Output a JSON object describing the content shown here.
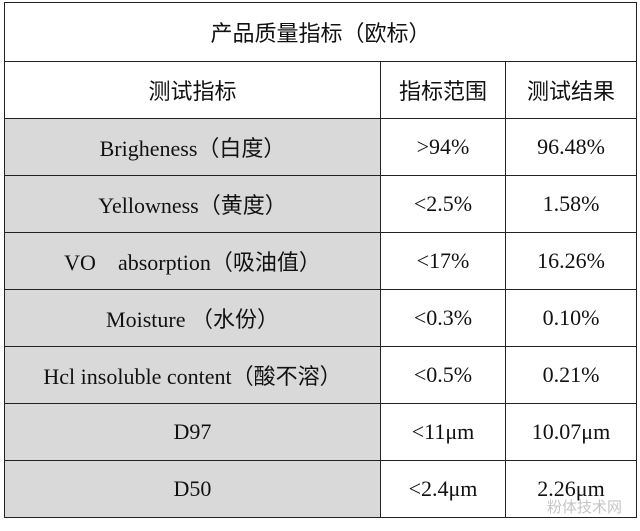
{
  "table": {
    "title": "产品质量指标（欧标）",
    "header": [
      "测试指标",
      "指标范围",
      "测试结果"
    ],
    "rows": [
      [
        "Brigheness（白度）",
        ">94%",
        "96.48%"
      ],
      [
        "Yellowness（黄度）",
        "<2.5%",
        "1.58%"
      ],
      [
        "VO    absorption（吸油值）",
        "<17%",
        "16.26%"
      ],
      [
        "Moisture （水份）",
        "<0.3%",
        "0.10%"
      ],
      [
        "Hcl insoluble content（酸不溶）",
        "<0.5%",
        "0.21%"
      ],
      [
        "D97",
        "<11μm",
        "10.07μm"
      ],
      [
        "D50",
        "<2.4μm",
        "2.26μm"
      ]
    ]
  },
  "watermark": "粉体技术网"
}
